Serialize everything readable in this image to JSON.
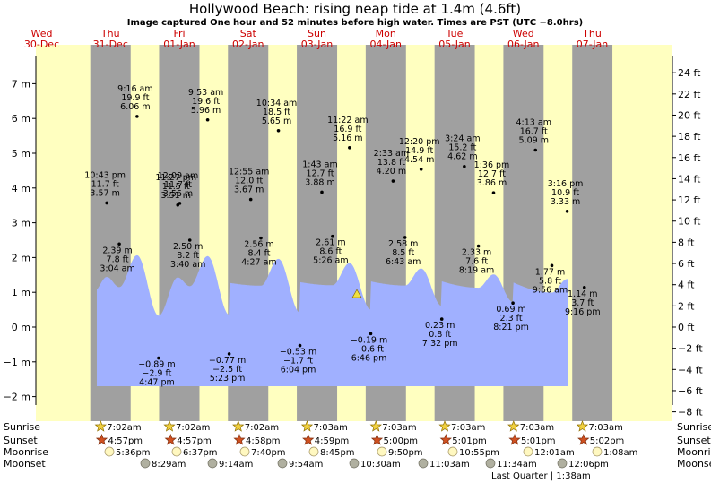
{
  "title": "Hollywood Beach: rising  neap tide at 1.4m (4.6ft)",
  "subtitle": "Image captured One hour and 52 minutes before high water. Times are PST (UTC −8.0hrs)",
  "days": [
    {
      "dow": "Wed",
      "date": "30-Dec"
    },
    {
      "dow": "Thu",
      "date": "31-Dec"
    },
    {
      "dow": "Fri",
      "date": "01-Jan"
    },
    {
      "dow": "Sat",
      "date": "02-Jan"
    },
    {
      "dow": "Sun",
      "date": "03-Jan"
    },
    {
      "dow": "Mon",
      "date": "04-Jan"
    },
    {
      "dow": "Tue",
      "date": "05-Jan"
    },
    {
      "dow": "Wed",
      "date": "06-Jan"
    },
    {
      "dow": "Thu",
      "date": "07-Jan"
    }
  ],
  "colors": {
    "day": "#ffffc0",
    "night": "#a0a0a0",
    "water": "#a0b0ff",
    "daylabel": "#cc0000"
  },
  "chart_data": {
    "type": "area",
    "title": "Hollywood Beach: rising  neap tide at 1.4m (4.6ft)",
    "ylabel_left": "m",
    "ylabel_right": "ft",
    "ylim_m": [
      -2.3,
      7.8
    ],
    "left_ticks": [
      "−2 m",
      "−1 m",
      "0 m",
      "1 m",
      "2 m",
      "3 m",
      "4 m",
      "5 m",
      "6 m",
      "7 m"
    ],
    "right_ticks": [
      "−8 ft",
      "−6 ft",
      "−4 ft",
      "−2 ft",
      "0 ft",
      "2 ft",
      "4 ft",
      "6 ft",
      "8 ft",
      "10 ft",
      "12 ft",
      "14 ft",
      "16 ft",
      "18 ft",
      "20 ft",
      "22 ft",
      "24 ft"
    ],
    "current_level_m": 1.4,
    "extremes": [
      {
        "time": "10:43 pm",
        "ft": "11.7 ft",
        "m": "3.57 m",
        "height_m": 3.57,
        "type": "high"
      },
      {
        "time": "3:04 am",
        "ft": "7.8 ft",
        "m": "2.39 m",
        "height_m": 2.39,
        "type": "low"
      },
      {
        "time": "9:16 am",
        "ft": "19.9 ft",
        "m": "6.06 m",
        "height_m": 6.06,
        "type": "high"
      },
      {
        "time": "4:47 pm",
        "ft": "−2.9 ft",
        "m": "−0.89 m",
        "height_m": -0.89,
        "type": "low"
      },
      {
        "time": "11:27 pm",
        "ft": "11.5 ft",
        "m": "3.51 m",
        "height_m": 3.51,
        "type": "high"
      },
      {
        "time": "3:40 am",
        "ft": "8.2 ft",
        "m": "2.50 m",
        "height_m": 2.5,
        "type": "low"
      },
      {
        "time": "9:53 am",
        "ft": "19.6 ft",
        "m": "5.96 m",
        "height_m": 5.96,
        "type": "high"
      },
      {
        "time": "5:23 pm",
        "ft": "−2.5 ft",
        "m": "−0.77 m",
        "height_m": -0.77,
        "type": "low"
      },
      {
        "time": "12:09 am",
        "ft": "11.7 ft",
        "m": "3.56 m",
        "height_m": 3.56,
        "type": "high"
      },
      {
        "time": "4:27 am",
        "ft": "8.4 ft",
        "m": "2.56 m",
        "height_m": 2.56,
        "type": "low"
      },
      {
        "time": "10:34 am",
        "ft": "18.5 ft",
        "m": "5.65 m",
        "height_m": 5.65,
        "type": "high"
      },
      {
        "time": "6:04 pm",
        "ft": "−1.7 ft",
        "m": "−0.53 m",
        "height_m": -0.53,
        "type": "low"
      },
      {
        "time": "12:55 am",
        "ft": "12.0 ft",
        "m": "3.67 m",
        "height_m": 3.67,
        "type": "high"
      },
      {
        "time": "5:26 am",
        "ft": "8.6 ft",
        "m": "2.61 m",
        "height_m": 2.61,
        "type": "low"
      },
      {
        "time": "11:22 am",
        "ft": "16.9 ft",
        "m": "5.16 m",
        "height_m": 5.16,
        "type": "high"
      },
      {
        "time": "6:46 pm",
        "ft": "−0.6 ft",
        "m": "−0.19 m",
        "height_m": -0.19,
        "type": "low"
      },
      {
        "time": "1:43 am",
        "ft": "12.7 ft",
        "m": "3.88 m",
        "height_m": 3.88,
        "type": "high"
      },
      {
        "time": "6:43 am",
        "ft": "8.5 ft",
        "m": "2.58 m",
        "height_m": 2.58,
        "type": "low"
      },
      {
        "time": "12:20 pm",
        "ft": "14.9 ft",
        "m": "4.54 m",
        "height_m": 4.54,
        "type": "high"
      },
      {
        "time": "7:32 pm",
        "ft": "0.8 ft",
        "m": "0.23 m",
        "height_m": 0.23,
        "type": "low"
      },
      {
        "time": "2:33 am",
        "ft": "13.8 ft",
        "m": "4.20 m",
        "height_m": 4.2,
        "type": "high"
      },
      {
        "time": "8:19 am",
        "ft": "7.6 ft",
        "m": "2.33 m",
        "height_m": 2.33,
        "type": "low"
      },
      {
        "time": "1:36 pm",
        "ft": "12.7 ft",
        "m": "3.86 m",
        "height_m": 3.86,
        "type": "high"
      },
      {
        "time": "8:21 pm",
        "ft": "2.3 ft",
        "m": "0.69 m",
        "height_m": 0.69,
        "type": "low"
      },
      {
        "time": "3:24 am",
        "ft": "15.2 ft",
        "m": "4.62 m",
        "height_m": 4.62,
        "type": "high"
      },
      {
        "time": "9:56 am",
        "ft": "5.8 ft",
        "m": "1.77 m",
        "height_m": 1.77,
        "type": "low"
      },
      {
        "time": "3:16 pm",
        "ft": "10.9 ft",
        "m": "3.33 m",
        "height_m": 3.33,
        "type": "high"
      },
      {
        "time": "9:16 pm",
        "ft": "3.7 ft",
        "m": "1.14 m",
        "height_m": 1.14,
        "type": "low"
      },
      {
        "time": "4:13 am",
        "ft": "16.7 ft",
        "m": "5.09 m",
        "height_m": 5.09,
        "type": "high"
      }
    ]
  },
  "rows": {
    "sunrise": {
      "label": "Sunrise",
      "times": [
        "7:02am",
        "7:02am",
        "7:02am",
        "7:03am",
        "7:03am",
        "7:03am",
        "7:03am",
        "7:03am"
      ]
    },
    "sunset": {
      "label": "Sunset",
      "times": [
        "4:57pm",
        "4:57pm",
        "4:58pm",
        "4:59pm",
        "5:00pm",
        "5:01pm",
        "5:01pm",
        "5:02pm"
      ]
    },
    "moonrise": {
      "label": "Moonrise",
      "times": [
        "5:36pm",
        "6:37pm",
        "7:40pm",
        "8:45pm",
        "9:50pm",
        "10:55pm",
        "12:01am",
        "1:08am"
      ]
    },
    "moonset": {
      "label": "Moonset",
      "times": [
        "8:29am",
        "9:14am",
        "9:54am",
        "10:30am",
        "11:03am",
        "11:34am",
        "12:06pm"
      ]
    },
    "moon_phase": "Last Quarter | 1:38am"
  }
}
